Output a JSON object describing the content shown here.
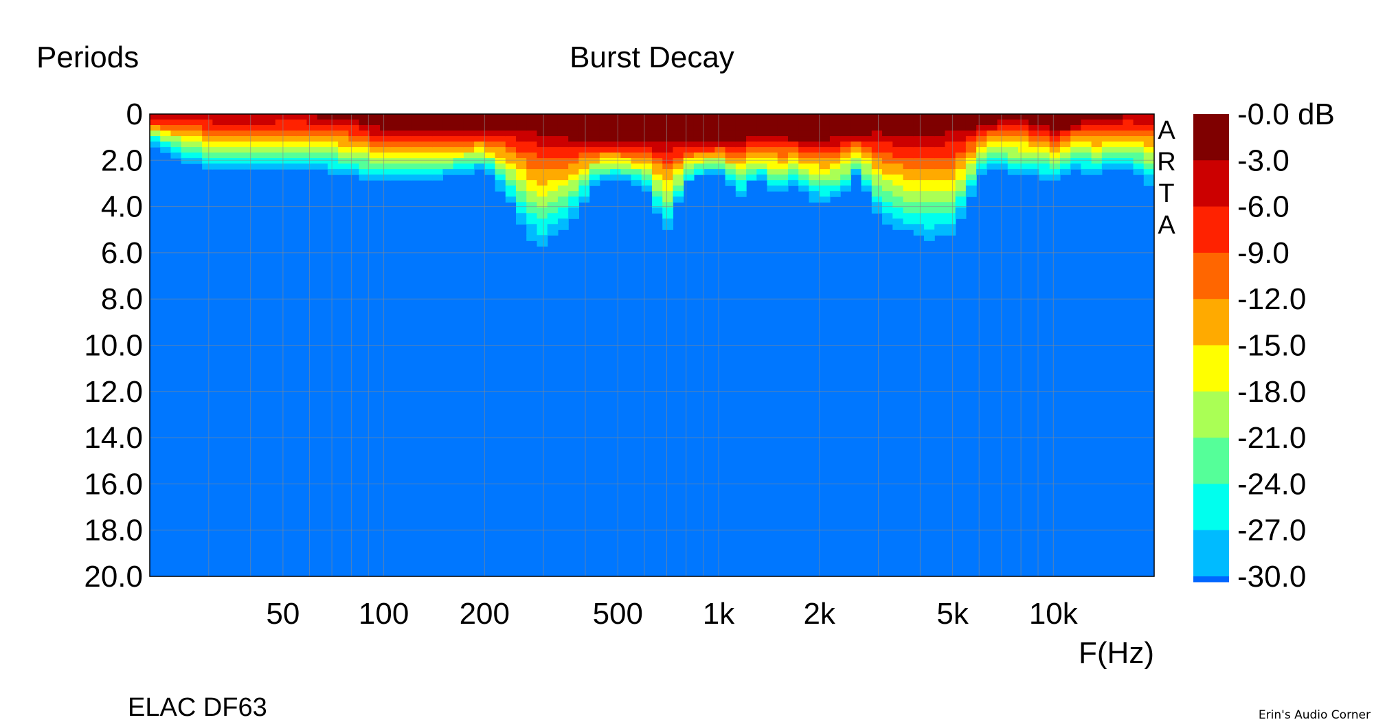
{
  "chart_data": {
    "type": "heatmap",
    "title": "Burst Decay",
    "ylabel": "Periods",
    "xlabel": "F(Hz)",
    "x_scale": "log",
    "xlim": [
      20,
      20000
    ],
    "ylim": [
      0,
      20
    ],
    "y_inverted": true,
    "x_ticks": [
      {
        "value": 50,
        "label": "50"
      },
      {
        "value": 100,
        "label": "100"
      },
      {
        "value": 200,
        "label": "200"
      },
      {
        "value": 500,
        "label": "500"
      },
      {
        "value": 1000,
        "label": "1k"
      },
      {
        "value": 2000,
        "label": "2k"
      },
      {
        "value": 5000,
        "label": "5k"
      },
      {
        "value": 10000,
        "label": "10k"
      }
    ],
    "y_ticks": [
      {
        "value": 0,
        "label": "0"
      },
      {
        "value": 2,
        "label": "2.0"
      },
      {
        "value": 4,
        "label": "4.0"
      },
      {
        "value": 6,
        "label": "6.0"
      },
      {
        "value": 8,
        "label": "8.0"
      },
      {
        "value": 10,
        "label": "10.0"
      },
      {
        "value": 12,
        "label": "12.0"
      },
      {
        "value": 14,
        "label": "14.0"
      },
      {
        "value": 16,
        "label": "16.0"
      },
      {
        "value": 18,
        "label": "18.0"
      },
      {
        "value": 20,
        "label": "20.0"
      }
    ],
    "grid": true,
    "colorbar": {
      "unit": "dB",
      "levels": [
        {
          "label": "-0.0 dB",
          "color": "#7f0000"
        },
        {
          "label": "-3.0",
          "color": "#cc0000"
        },
        {
          "label": "-6.0",
          "color": "#ff2200"
        },
        {
          "label": "-9.0",
          "color": "#ff6600"
        },
        {
          "label": "-12.0",
          "color": "#ffaa00"
        },
        {
          "label": "-15.0",
          "color": "#ffff00"
        },
        {
          "label": "-18.0",
          "color": "#aaff55"
        },
        {
          "label": "-21.0",
          "color": "#55ff99"
        },
        {
          "label": "-24.0",
          "color": "#00ffee"
        },
        {
          "label": "-27.0",
          "color": "#00bbff"
        },
        {
          "label": "-30.0",
          "color": "#0066ff"
        }
      ]
    },
    "background_color": "#0077ff",
    "decay_profile": {
      "freq": [
        20,
        25,
        30,
        40,
        50,
        60,
        80,
        100,
        130,
        170,
        200,
        230,
        260,
        290,
        330,
        380,
        430,
        500,
        600,
        700,
        800,
        900,
        1000,
        1150,
        1300,
        1500,
        1700,
        2000,
        2300,
        2600,
        3000,
        3400,
        3800,
        4300,
        5000,
        5500,
        6000,
        7000,
        7500,
        8000,
        9000,
        10000,
        11000,
        12000,
        13000,
        14000,
        15000,
        17000,
        20000
      ],
      "periods_minus3": [
        0.1,
        0.1,
        0.1,
        0.1,
        0.1,
        0.1,
        0.3,
        0.7,
        0.8,
        0.8,
        0.7,
        0.6,
        0.7,
        0.8,
        1.0,
        1.1,
        1.2,
        1.2,
        1.3,
        1.2,
        1.2,
        1.3,
        1.2,
        1.1,
        1.0,
        1.0,
        1.1,
        1.1,
        1.0,
        0.9,
        0.8,
        0.9,
        0.9,
        0.9,
        0.8,
        0.7,
        0.6,
        0.2,
        0.2,
        0.3,
        0.5,
        0.7,
        0.6,
        0.3,
        0.2,
        0.3,
        0.2,
        0.1,
        0.1
      ],
      "periods_minus30": [
        1.2,
        2.0,
        2.4,
        2.5,
        2.4,
        2.3,
        2.7,
        2.9,
        2.9,
        2.6,
        2.4,
        3.5,
        4.8,
        5.8,
        5.2,
        4.2,
        3.0,
        2.8,
        3.2,
        5.1,
        3.0,
        2.6,
        2.5,
        3.6,
        2.7,
        3.5,
        3.0,
        3.9,
        3.6,
        2.6,
        4.4,
        4.9,
        5.2,
        5.4,
        5.2,
        4.0,
        2.6,
        2.3,
        2.6,
        2.5,
        2.7,
        2.8,
        2.5,
        2.2,
        2.8,
        2.5,
        2.3,
        2.3,
        3.2
      ]
    },
    "side_label": "ARTA",
    "caption": "ELAC DF63"
  },
  "watermark": "Erin's Audio Corner"
}
